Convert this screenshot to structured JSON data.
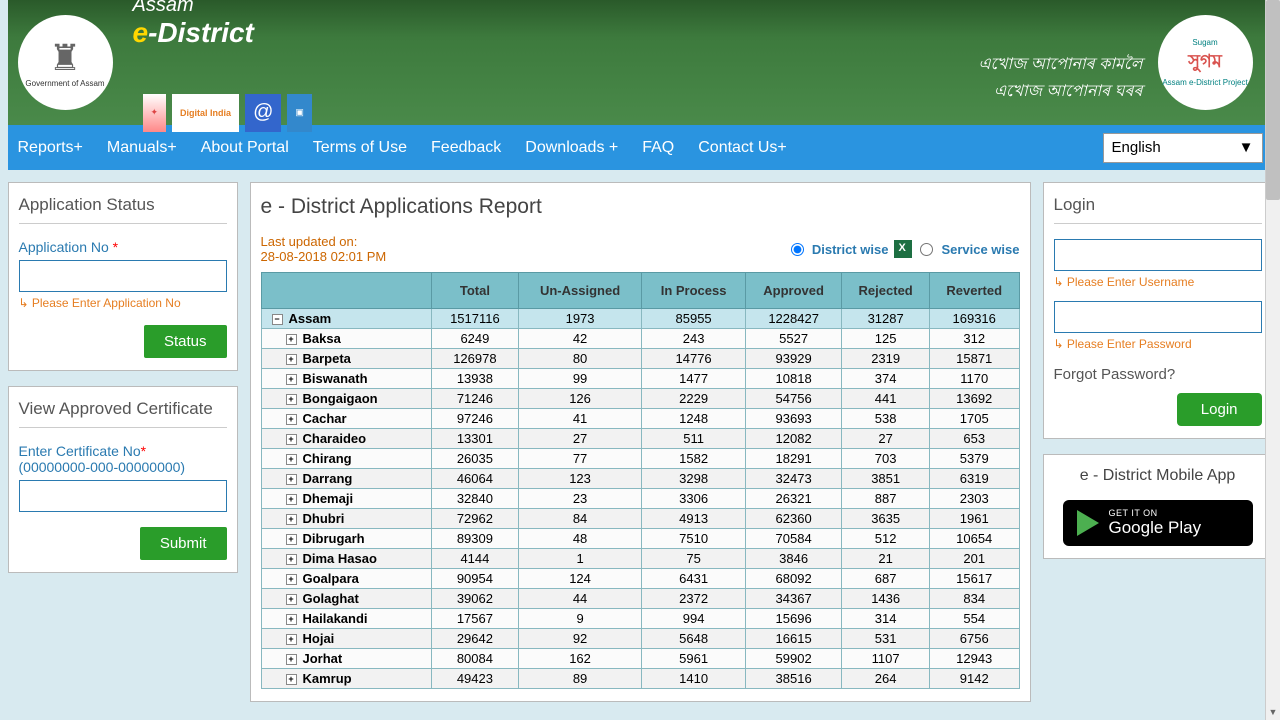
{
  "banner": {
    "emblem_text": "Government of Assam",
    "title_line1": "Assam",
    "title_e": "e",
    "title_dist": "-District",
    "partners": [
      "",
      "Digital India",
      "@",
      ""
    ],
    "sugam_top": "Sugam",
    "sugam_main": "সুগম",
    "sugam_sub": "Assam e-District Project",
    "assamese_line1": "এখোজ আপোনাৰ কামলৈ",
    "assamese_line2": "এখোজ আপোনাৰ ঘৰৰ"
  },
  "nav": {
    "items": [
      "Reports+",
      "Manuals+",
      "About Portal",
      "Terms of Use",
      "Feedback",
      "Downloads +",
      "FAQ",
      "Contact Us+"
    ],
    "language": "English"
  },
  "app_status": {
    "title": "Application Status",
    "label": "Application No",
    "hint": "Please Enter Application No",
    "button": "Status"
  },
  "cert": {
    "title": "View Approved Certificate",
    "label": "Enter Certificate No",
    "format": "(00000000-000-00000000)",
    "button": "Submit"
  },
  "report": {
    "title": "e - District Applications Report",
    "updated_label": "Last updated on:",
    "updated_time": "28-08-2018 02:01 PM",
    "view_district": "District wise",
    "view_service": "Service wise",
    "columns": [
      "",
      "Total",
      "Un-Assigned",
      "In Process",
      "Approved",
      "Rejected",
      "Reverted"
    ],
    "state": {
      "name": "Assam",
      "total": "1517116",
      "unassigned": "1973",
      "inprocess": "85955",
      "approved": "1228427",
      "rejected": "31287",
      "reverted": "169316"
    },
    "rows": [
      {
        "name": "Baksa",
        "total": "6249",
        "unassigned": "42",
        "inprocess": "243",
        "approved": "5527",
        "rejected": "125",
        "reverted": "312"
      },
      {
        "name": "Barpeta",
        "total": "126978",
        "unassigned": "80",
        "inprocess": "14776",
        "approved": "93929",
        "rejected": "2319",
        "reverted": "15871"
      },
      {
        "name": "Biswanath",
        "total": "13938",
        "unassigned": "99",
        "inprocess": "1477",
        "approved": "10818",
        "rejected": "374",
        "reverted": "1170"
      },
      {
        "name": "Bongaigaon",
        "total": "71246",
        "unassigned": "126",
        "inprocess": "2229",
        "approved": "54756",
        "rejected": "441",
        "reverted": "13692"
      },
      {
        "name": "Cachar",
        "total": "97246",
        "unassigned": "41",
        "inprocess": "1248",
        "approved": "93693",
        "rejected": "538",
        "reverted": "1705"
      },
      {
        "name": "Charaideo",
        "total": "13301",
        "unassigned": "27",
        "inprocess": "511",
        "approved": "12082",
        "rejected": "27",
        "reverted": "653"
      },
      {
        "name": "Chirang",
        "total": "26035",
        "unassigned": "77",
        "inprocess": "1582",
        "approved": "18291",
        "rejected": "703",
        "reverted": "5379"
      },
      {
        "name": "Darrang",
        "total": "46064",
        "unassigned": "123",
        "inprocess": "3298",
        "approved": "32473",
        "rejected": "3851",
        "reverted": "6319"
      },
      {
        "name": "Dhemaji",
        "total": "32840",
        "unassigned": "23",
        "inprocess": "3306",
        "approved": "26321",
        "rejected": "887",
        "reverted": "2303"
      },
      {
        "name": "Dhubri",
        "total": "72962",
        "unassigned": "84",
        "inprocess": "4913",
        "approved": "62360",
        "rejected": "3635",
        "reverted": "1961"
      },
      {
        "name": "Dibrugarh",
        "total": "89309",
        "unassigned": "48",
        "inprocess": "7510",
        "approved": "70584",
        "rejected": "512",
        "reverted": "10654"
      },
      {
        "name": "Dima Hasao",
        "total": "4144",
        "unassigned": "1",
        "inprocess": "75",
        "approved": "3846",
        "rejected": "21",
        "reverted": "201"
      },
      {
        "name": "Goalpara",
        "total": "90954",
        "unassigned": "124",
        "inprocess": "6431",
        "approved": "68092",
        "rejected": "687",
        "reverted": "15617"
      },
      {
        "name": "Golaghat",
        "total": "39062",
        "unassigned": "44",
        "inprocess": "2372",
        "approved": "34367",
        "rejected": "1436",
        "reverted": "834"
      },
      {
        "name": "Hailakandi",
        "total": "17567",
        "unassigned": "9",
        "inprocess": "994",
        "approved": "15696",
        "rejected": "314",
        "reverted": "554"
      },
      {
        "name": "Hojai",
        "total": "29642",
        "unassigned": "92",
        "inprocess": "5648",
        "approved": "16615",
        "rejected": "531",
        "reverted": "6756"
      },
      {
        "name": "Jorhat",
        "total": "80084",
        "unassigned": "162",
        "inprocess": "5961",
        "approved": "59902",
        "rejected": "1107",
        "reverted": "12943"
      },
      {
        "name": "Kamrup",
        "total": "49423",
        "unassigned": "89",
        "inprocess": "1410",
        "approved": "38516",
        "rejected": "264",
        "reverted": "9142"
      }
    ]
  },
  "login": {
    "title": "Login",
    "user_hint": "Please Enter Username",
    "pass_hint": "Please Enter Password",
    "forgot": "Forgot Password?",
    "button": "Login"
  },
  "mobile": {
    "title": "e - District Mobile App",
    "get_it": "GET IT ON",
    "store": "Google Play"
  }
}
